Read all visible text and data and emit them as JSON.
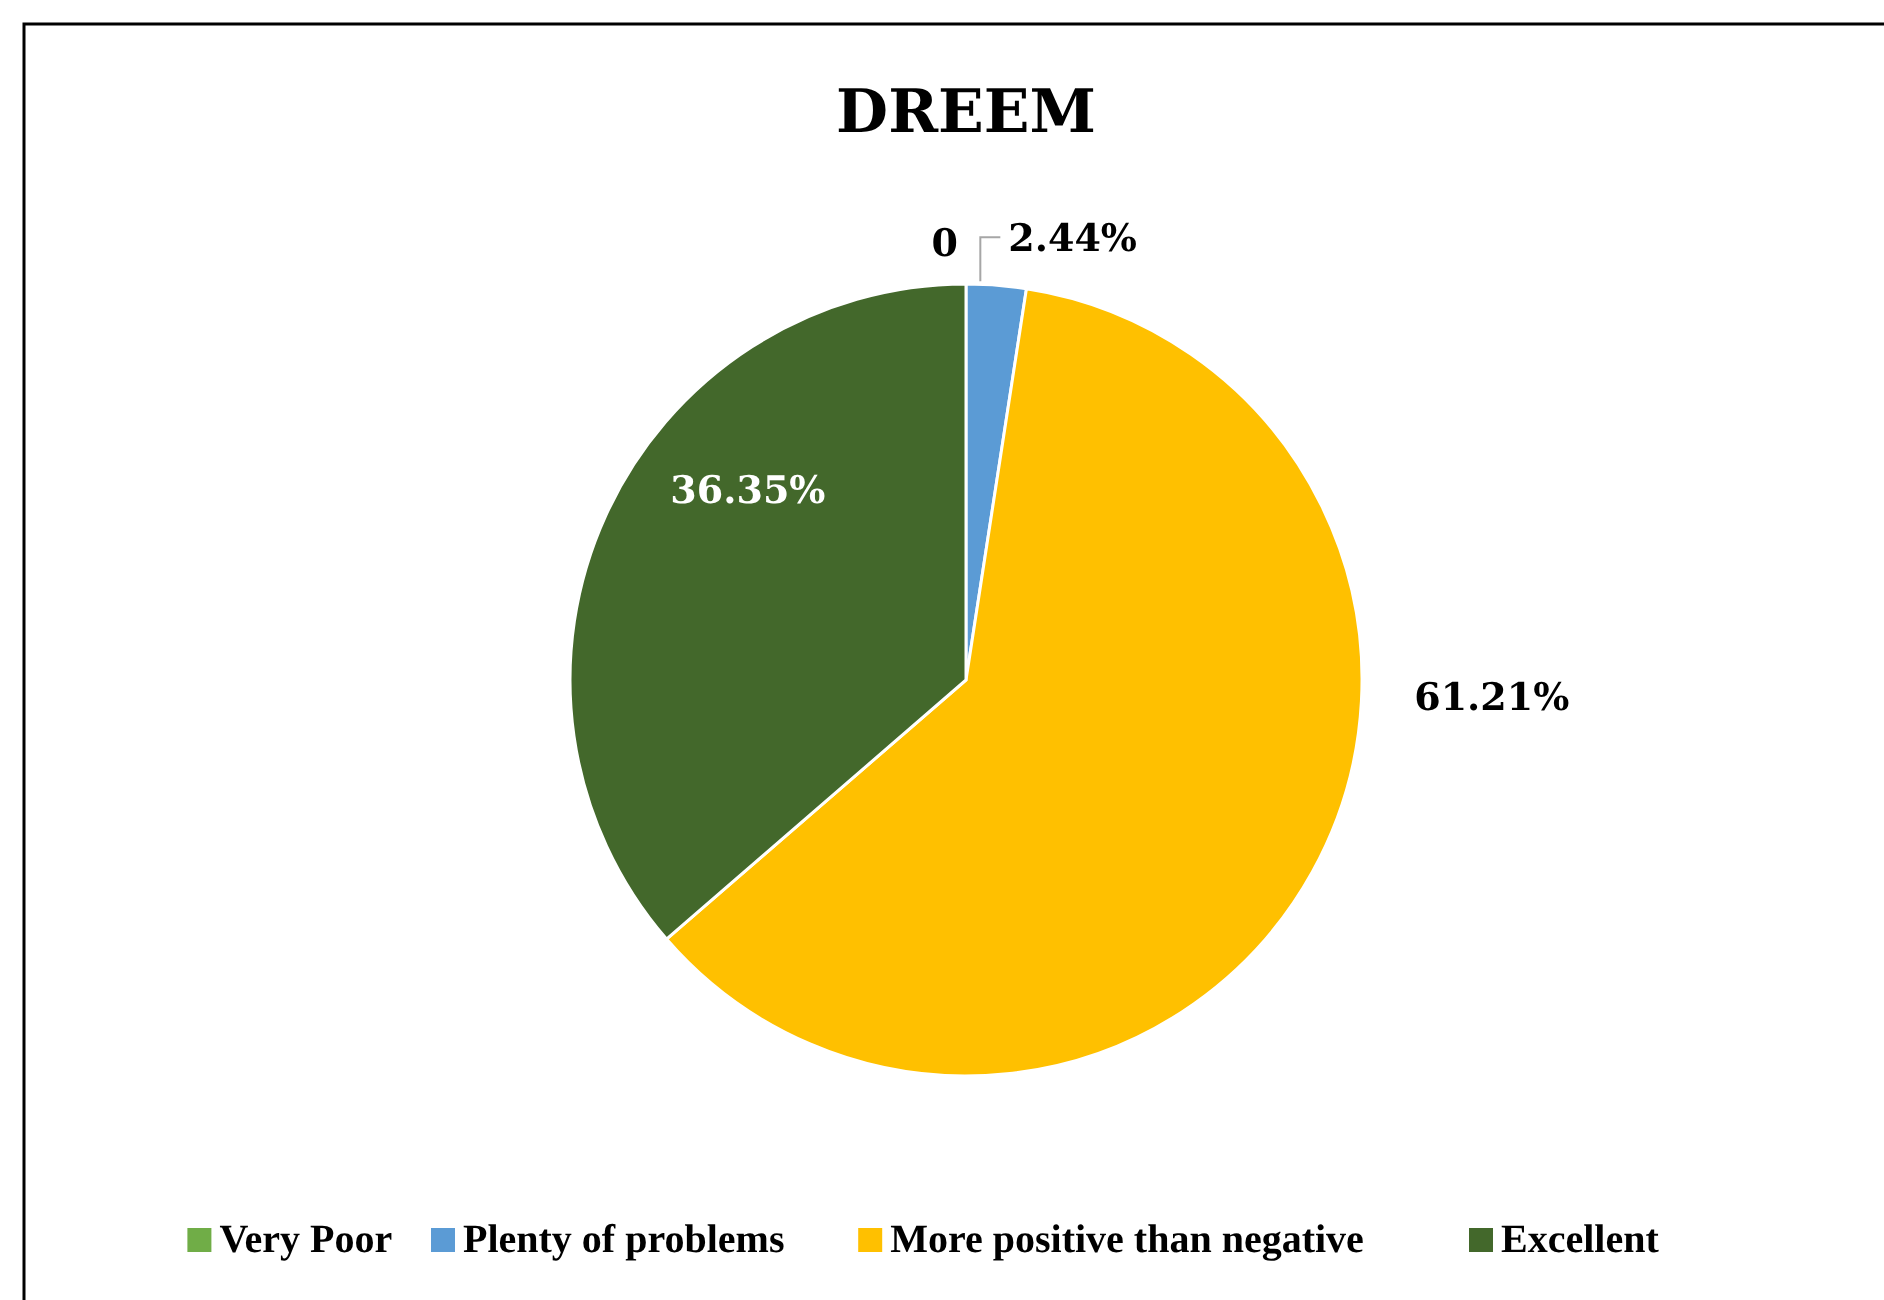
{
  "chart_data": {
    "type": "pie",
    "title": "DREEM",
    "categories": [
      "Very Poor",
      "Plenty of problems",
      "More positive than negative",
      "Excellent"
    ],
    "values": [
      0,
      2.44,
      61.21,
      36.35
    ],
    "colors": [
      "#70ad47",
      "#5b9bd5",
      "#ffc000",
      "#43682b"
    ],
    "value_labels": [
      "0",
      "2.44%",
      "61.21%",
      "36.35%"
    ],
    "legend": "bottom"
  }
}
